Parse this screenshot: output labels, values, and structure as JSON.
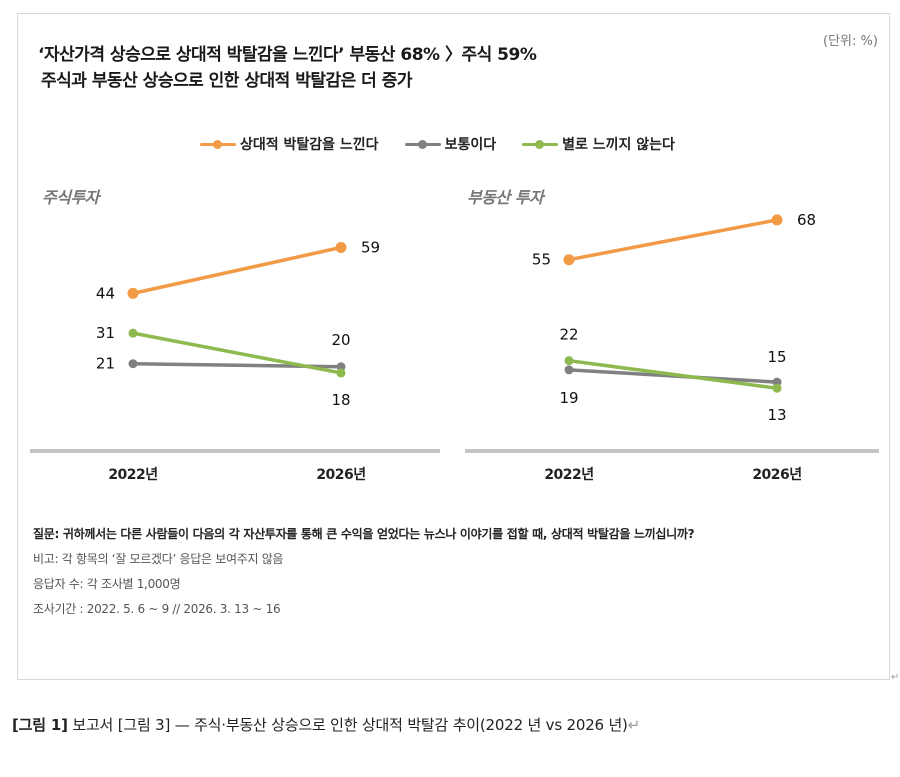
{
  "header": {
    "title_line1": "‘자산가격 상승으로 상대적 박탈감을 느낀다’ 부동산 68% 〉주식 59%",
    "title_line2": "주식과 부동산 상승으로 인한 상대적 박탈감은 더 증가",
    "unit": "(단위: %)"
  },
  "legend": [
    {
      "label": "상대적 박탈감을 느낀다",
      "color": "#F39A46"
    },
    {
      "label": "보통이다",
      "color": "#808080"
    },
    {
      "label": "별로 느끼지 않는다",
      "color": "#8DB94E"
    }
  ],
  "chart_data": [
    {
      "type": "line",
      "title": "주식투자",
      "categories": [
        "2022년",
        "2026년"
      ],
      "ylim": [
        0,
        75
      ],
      "grid": false,
      "legend_position": "top",
      "series": [
        {
          "name": "상대적 박탈감을 느낀다",
          "color": "#F39A46",
          "values": [
            44,
            59
          ]
        },
        {
          "name": "보통이다",
          "color": "#808080",
          "values": [
            21,
            20
          ]
        },
        {
          "name": "별로 느끼지 않는다",
          "color": "#8DB94E",
          "values": [
            31,
            18
          ]
        }
      ]
    },
    {
      "type": "line",
      "title": "부동산 투자",
      "categories": [
        "2022년",
        "2026년"
      ],
      "ylim": [
        0,
        75
      ],
      "grid": false,
      "legend_position": "top",
      "series": [
        {
          "name": "상대적 박탈감을 느낀다",
          "color": "#F39A46",
          "values": [
            55,
            68
          ]
        },
        {
          "name": "보통이다",
          "color": "#808080",
          "values": [
            19,
            15
          ]
        },
        {
          "name": "별로 느끼지 않는다",
          "color": "#8DB94E",
          "values": [
            22,
            13
          ]
        }
      ]
    }
  ],
  "notes": {
    "question": "질문: 귀하께서는 다른 사람들이 다음의 각 자산투자를 통해 큰 수익을 얻었다는 뉴스나 이야기를 접할 때, 상대적 박탈감을 느끼십니까?",
    "remark": "비고: 각 항목의 ‘잘 모르겠다’ 응답은 보여주지 않음",
    "respondents": "응답자 수: 각 조사별 1,000명",
    "period": "조사기간 : 2022. 5. 6 ~ 9 // 2026. 3. 13 ~ 16"
  },
  "caption": {
    "label": "[그림 1]",
    "text": "보고서 [그림 3] — 주식·부동산 상승으로 인한 상대적 박탈감 추이(2022 년 vs 2026 년)",
    "return_mark": "↵"
  },
  "frame_marker": "↵"
}
